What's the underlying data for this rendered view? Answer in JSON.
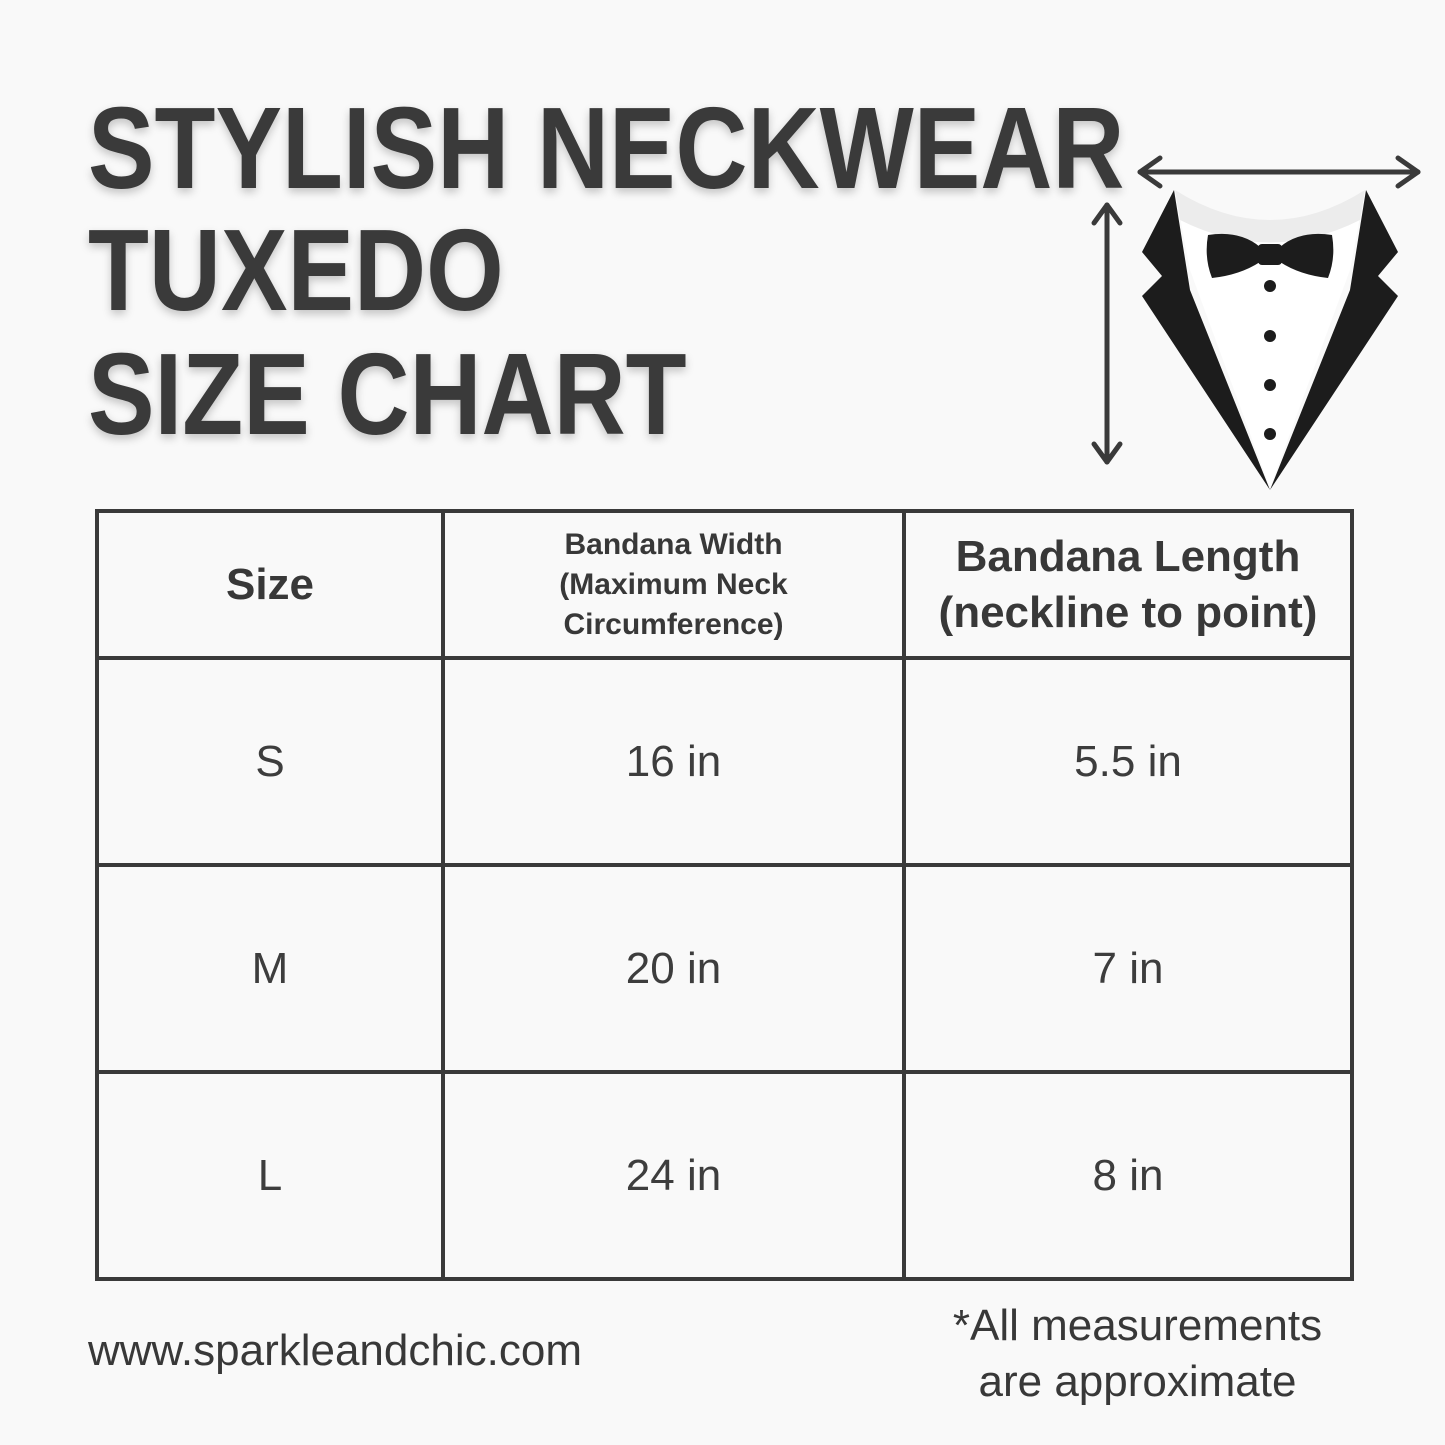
{
  "title": {
    "line1": "STYLISH NECKWEAR",
    "line2": "TUXEDO",
    "line3": "SIZE CHART"
  },
  "illustration": {
    "icon": "tuxedo-bandana-icon",
    "arrows": [
      "width-arrow-icon",
      "length-arrow-icon"
    ]
  },
  "table": {
    "headers": [
      "Size",
      "Bandana Width (Maximum Neck Circumference)",
      "Bandana Length (neckline to point)"
    ],
    "header_lines": {
      "width": [
        "Bandana Width",
        "(Maximum Neck",
        "Circumference)"
      ],
      "length": [
        "Bandana Length",
        "(neckline to point)"
      ]
    },
    "rows": [
      {
        "size": "S",
        "width": "16 in",
        "length": "5.5 in"
      },
      {
        "size": "M",
        "width": "20 in",
        "length": "7 in"
      },
      {
        "size": "L",
        "width": "24 in",
        "length": "8 in"
      }
    ]
  },
  "footer": {
    "website": "www.sparkleandchic.com",
    "note_line1": "*All measurements",
    "note_line2": "are approximate"
  },
  "colors": {
    "background": "#f9f9f9",
    "text": "#3a3a3a",
    "tuxedo": "#1c1c1c"
  }
}
